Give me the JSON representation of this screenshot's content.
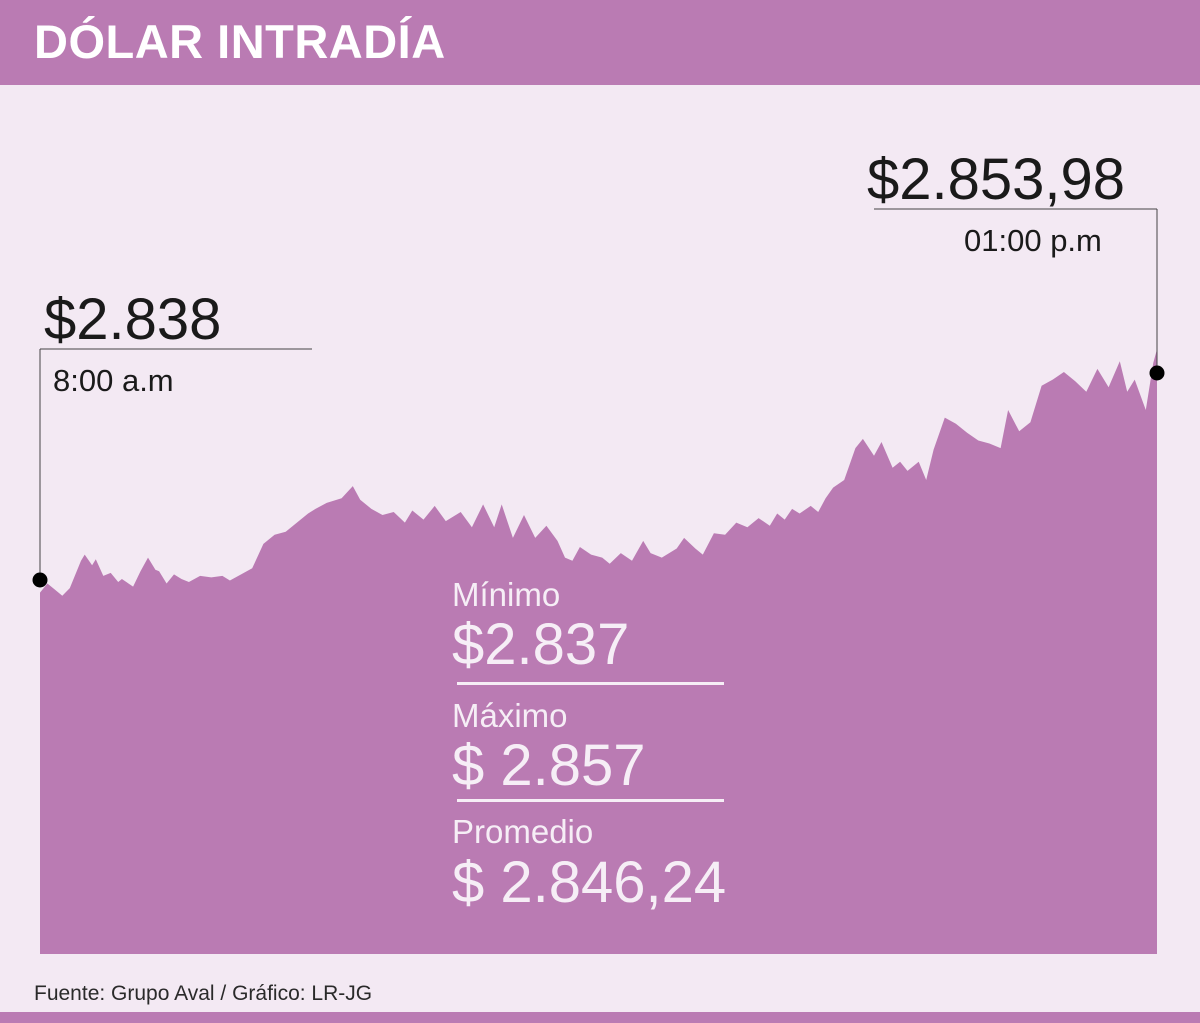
{
  "header": {
    "title": "DÓLAR INTRADÍA"
  },
  "colors": {
    "accent": "#ba7bb3",
    "background": "#f3e9f3",
    "text_dark": "#1a1a1a",
    "text_light": "#f6eef6"
  },
  "annotations": {
    "start": {
      "value": "$2.838",
      "time": "8:00 a.m"
    },
    "end": {
      "value": "$2.853,98",
      "time": "01:00 p.m"
    }
  },
  "stats": {
    "min_label": "Mínimo",
    "min_value": "$2.837",
    "max_label": "Máximo",
    "max_value": "$ 2.857",
    "avg_label": "Promedio",
    "avg_value": "$ 2.846,24"
  },
  "footer": {
    "source": "Fuente: Grupo Aval  / Gráfico: LR-JG"
  },
  "chart_data": {
    "type": "area",
    "title": "DÓLAR INTRADÍA",
    "xlabel": "",
    "ylabel": "",
    "x_range": [
      "8:00 a.m",
      "01:00 p.m"
    ],
    "ylim": [
      2836.4,
      2854.6
    ],
    "grid": false,
    "series": [
      {
        "x_minutes_from_start": [
          0,
          2,
          4,
          6,
          8,
          11,
          12,
          14,
          15,
          17,
          19,
          21,
          22,
          25,
          27,
          29,
          31,
          32,
          34,
          36,
          38,
          40,
          43,
          46,
          49,
          51,
          54,
          57,
          60,
          63,
          66,
          69,
          72,
          74,
          77,
          81,
          84,
          86,
          89,
          92,
          95,
          98,
          100,
          103,
          106,
          109,
          113,
          116,
          119,
          122,
          124,
          127,
          130,
          133,
          136,
          139,
          141,
          143,
          145,
          148,
          151,
          153,
          156,
          159,
          162,
          164,
          167,
          171,
          173,
          176,
          178,
          181,
          184,
          187,
          190,
          193,
          196,
          198,
          200,
          202,
          204,
          207,
          209,
          211,
          213,
          216,
          219,
          221,
          224,
          226,
          229,
          231,
          233,
          236,
          238,
          240,
          243,
          246,
          249,
          252,
          255,
          258,
          260,
          263,
          266,
          269,
          272,
          275,
          278,
          281,
          284,
          287,
          290,
          292,
          294,
          297,
          299,
          300
        ],
        "values": [
          2838.0,
          2838.6,
          2838.2,
          2837.8,
          2838.3,
          2840.1,
          2840.5,
          2839.8,
          2840.2,
          2839.1,
          2839.3,
          2838.7,
          2838.9,
          2838.4,
          2839.4,
          2840.3,
          2839.5,
          2839.4,
          2838.6,
          2839.2,
          2838.9,
          2838.7,
          2839.1,
          2839.0,
          2839.1,
          2838.8,
          2839.2,
          2839.6,
          2841.2,
          2841.8,
          2842.0,
          2842.6,
          2843.2,
          2843.5,
          2843.9,
          2844.2,
          2845.0,
          2844.1,
          2843.5,
          2843.1,
          2843.3,
          2842.6,
          2843.4,
          2842.8,
          2843.7,
          2842.7,
          2843.3,
          2842.3,
          2843.8,
          2842.3,
          2843.8,
          2841.6,
          2843.1,
          2841.6,
          2842.4,
          2841.4,
          2840.3,
          2840.1,
          2841.0,
          2840.5,
          2840.3,
          2839.9,
          2840.6,
          2840.1,
          2841.4,
          2840.6,
          2840.3,
          2840.9,
          2841.6,
          2840.9,
          2840.5,
          2841.9,
          2841.8,
          2842.6,
          2842.3,
          2842.9,
          2842.4,
          2843.2,
          2842.8,
          2843.5,
          2843.2,
          2843.7,
          2843.3,
          2844.2,
          2844.9,
          2845.4,
          2847.5,
          2848.1,
          2847.0,
          2847.9,
          2846.2,
          2846.6,
          2846.0,
          2846.6,
          2845.4,
          2847.4,
          2849.5,
          2849.1,
          2848.5,
          2848.0,
          2847.8,
          2847.5,
          2850.0,
          2848.6,
          2849.2,
          2851.6,
          2852.0,
          2852.5,
          2851.9,
          2851.2,
          2852.7,
          2851.5,
          2853.2,
          2851.2,
          2852.0,
          2850.0,
          2853.1,
          2853.98
        ]
      }
    ]
  }
}
